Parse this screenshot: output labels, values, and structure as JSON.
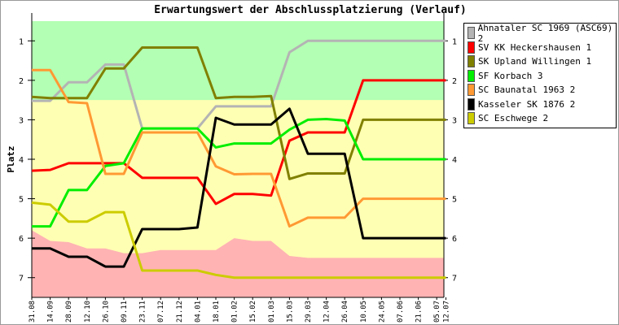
{
  "chart_data": {
    "type": "line",
    "title": "Erwartungswert der Abschlussplatzierung (Verlauf)",
    "xlabel": "",
    "ylabel": "Platz",
    "ylim": [
      0.5,
      7.5
    ],
    "y_inverted": true,
    "yticks": [
      1,
      2,
      3,
      4,
      5,
      6,
      7
    ],
    "categories": [
      "31.08",
      "14.09",
      "28.09",
      "12.10",
      "26.10",
      "09.11",
      "23.11",
      "07.12",
      "21.12",
      "04.01",
      "18.01",
      "01.02",
      "15.02",
      "01.03",
      "15.03",
      "29.03",
      "12.04",
      "26.04",
      "10.05",
      "24.05",
      "07.06",
      "21.06",
      "05.07",
      "12.07"
    ],
    "x_positions": [
      0,
      1,
      2,
      3,
      4,
      5,
      6,
      7,
      8,
      9,
      10,
      11,
      12,
      13,
      14,
      15,
      16,
      17,
      18,
      19,
      20,
      21,
      22,
      22.5
    ],
    "zones": [
      {
        "name": "promotion",
        "from": 0.5,
        "to": 2.5,
        "color": "#b3ffb3"
      },
      {
        "name": "middle",
        "from": 2.5,
        "to": "relegation",
        "color": "#ffffb3"
      },
      {
        "name": "relegation",
        "color": "#ffb3b3",
        "upper_bound": [
          5.8,
          6.07,
          6.1,
          6.26,
          6.26,
          6.38,
          6.38,
          6.3,
          6.3,
          6.3,
          6.3,
          6.0,
          6.07,
          6.07,
          6.45,
          6.5,
          6.5,
          6.5,
          6.5,
          6.5,
          6.5,
          6.5,
          6.5,
          6.5
        ]
      }
    ],
    "legend_position": "right",
    "series": [
      {
        "name": "Ahnataler SC 1969 (ASC69) 2",
        "color": "#b4b4b4",
        "values": [
          2.52,
          2.52,
          2.05,
          2.05,
          1.6,
          1.6,
          3.22,
          3.22,
          3.22,
          3.22,
          2.66,
          2.66,
          2.66,
          2.66,
          1.29,
          1,
          1,
          1,
          1,
          1,
          1,
          1,
          1,
          1
        ]
      },
      {
        "name": "SV KK Heckershausen 1",
        "color": "#ff0000",
        "values": [
          4.29,
          4.27,
          4.1,
          4.1,
          4.1,
          4.1,
          4.47,
          4.47,
          4.47,
          4.47,
          5.13,
          4.88,
          4.88,
          4.92,
          3.53,
          3.32,
          3.32,
          3.32,
          2,
          2,
          2,
          2,
          2,
          2
        ]
      },
      {
        "name": "SK Upland Willingen 1",
        "color": "#808000",
        "values": [
          2.42,
          2.45,
          2.45,
          2.45,
          1.7,
          1.7,
          1.17,
          1.17,
          1.17,
          1.17,
          2.45,
          2.42,
          2.42,
          2.4,
          4.5,
          4.36,
          4.36,
          4.36,
          3,
          3,
          3,
          3,
          3,
          3
        ]
      },
      {
        "name": "SF Korbach 3",
        "color": "#00ee00",
        "values": [
          5.7,
          5.7,
          4.78,
          4.78,
          4.17,
          4.1,
          3.22,
          3.22,
          3.22,
          3.22,
          3.7,
          3.6,
          3.6,
          3.6,
          3.25,
          3.0,
          2.98,
          3.02,
          4,
          4,
          4,
          4,
          4,
          4
        ]
      },
      {
        "name": "SC Baunatal 1963 2",
        "color": "#ff9933",
        "values": [
          1.74,
          1.74,
          2.55,
          2.58,
          4.37,
          4.37,
          3.32,
          3.32,
          3.32,
          3.32,
          4.18,
          4.38,
          4.37,
          4.37,
          5.7,
          5.48,
          5.48,
          5.48,
          5,
          5,
          5,
          5,
          5,
          5
        ]
      },
      {
        "name": "Kasseler SK 1876 2",
        "color": "#000000",
        "values": [
          6.26,
          6.26,
          6.47,
          6.47,
          6.72,
          6.72,
          5.77,
          5.77,
          5.77,
          5.73,
          2.95,
          3.12,
          3.12,
          3.12,
          2.72,
          3.86,
          3.86,
          3.86,
          6,
          6,
          6,
          6,
          6,
          6
        ]
      },
      {
        "name": "SC Eschwege 2",
        "color": "#cccc00",
        "values": [
          5.1,
          5.15,
          5.58,
          5.58,
          5.34,
          5.34,
          6.82,
          6.82,
          6.82,
          6.82,
          6.93,
          7,
          7,
          7,
          7,
          7,
          7,
          7,
          7,
          7,
          7,
          7,
          7,
          7
        ]
      }
    ]
  }
}
